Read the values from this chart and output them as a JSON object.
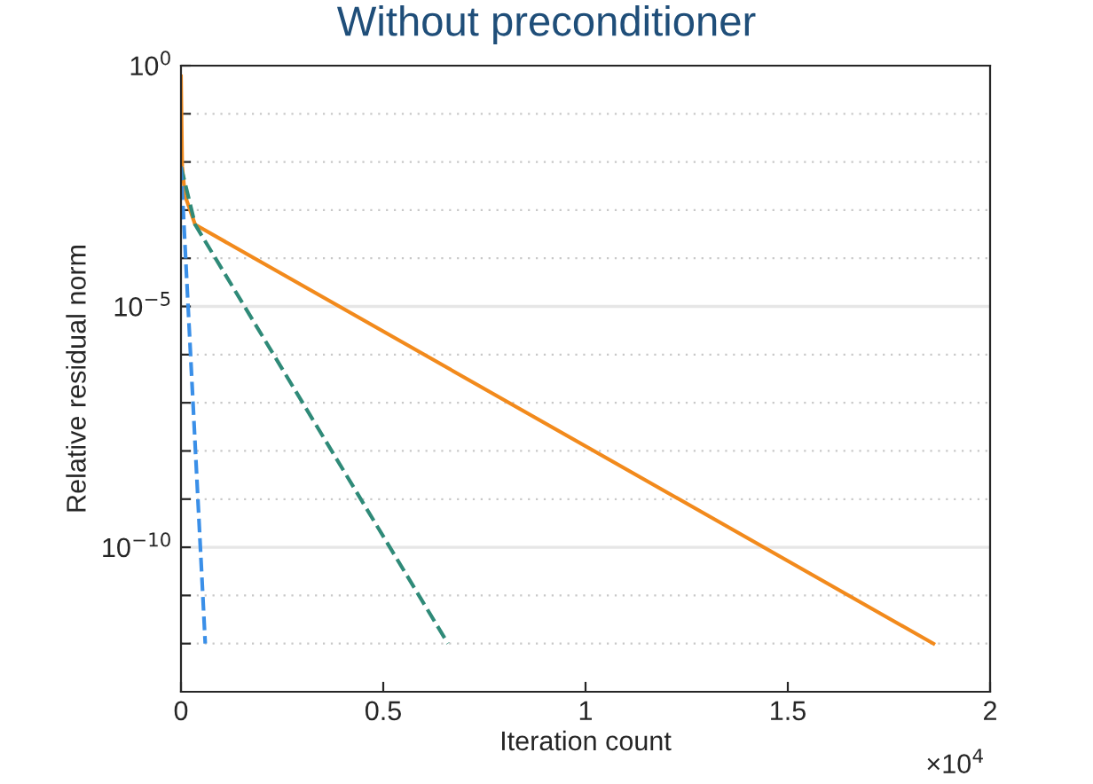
{
  "chart_data": {
    "type": "line",
    "title": "Without preconditioner",
    "xlabel": "Iteration count",
    "ylabel": "Relative residual norm",
    "log": "y",
    "grid": "y",
    "marker": "none",
    "xlim": [
      0,
      2
    ],
    "xticks": [
      0,
      0.5,
      1,
      1.5,
      2
    ],
    "ylim": [
      1e-13,
      1
    ],
    "yticks": [
      {
        "value": 1,
        "label": "10$^{0}$"
      },
      {
        "value": 0.1,
        "label": null
      },
      {
        "value": 0.01,
        "label": null
      },
      {
        "value": 0.001,
        "label": null
      },
      {
        "value": 0.0001,
        "label": null
      },
      {
        "value": 1e-05,
        "label": "10$^{−5}$"
      },
      {
        "value": 1e-06,
        "label": null
      },
      {
        "value": 1e-07,
        "label": null
      },
      {
        "value": 1e-08,
        "label": null
      },
      {
        "value": 1e-09,
        "label": null
      },
      {
        "value": 1e-10,
        "label": "10$^{−10}$"
      },
      {
        "value": 1e-11,
        "label": null
      },
      {
        "value": 1e-12,
        "label": null
      }
    ],
    "annotations": [
      "×10$^{4}$"
    ],
    "series": [
      {
        "color": "#f28a1c",
        "line_style": "solid",
        "x": [
          0,
          0.003,
          0.01,
          0.035,
          1.86
        ],
        "values": [
          0.6,
          0.008,
          0.002,
          0.0005,
          1e-12
        ]
      },
      {
        "color": "#2f8a78",
        "line_style": "dashed",
        "x": [
          0,
          0.035,
          0.66
        ],
        "values": [
          0.008,
          0.0005,
          1e-12
        ]
      },
      {
        "color": "#3a8fe8",
        "line_style": "dashed",
        "x": [
          0,
          0.06
        ],
        "values": [
          0.008,
          1e-12
        ]
      }
    ]
  }
}
